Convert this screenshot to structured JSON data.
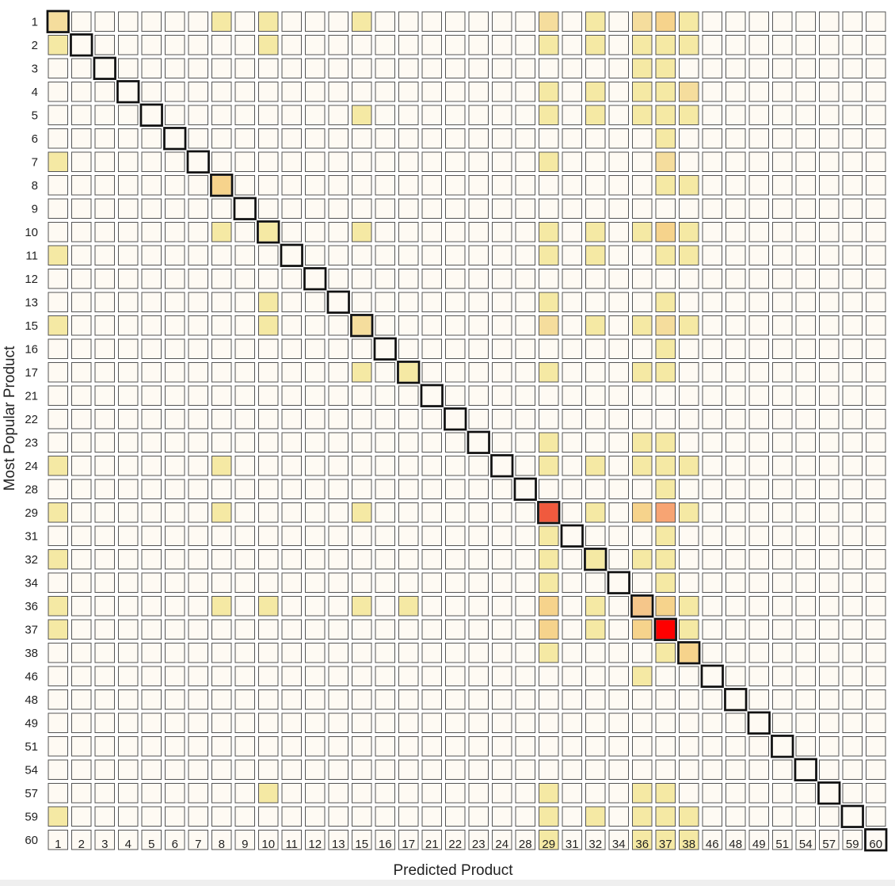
{
  "chart_data": {
    "type": "heatmap",
    "xlabel": "Predicted Product",
    "ylabel": "Most Popular Product",
    "x_categories": [
      "1",
      "2",
      "3",
      "4",
      "5",
      "6",
      "7",
      "8",
      "9",
      "10",
      "11",
      "12",
      "13",
      "15",
      "16",
      "17",
      "21",
      "22",
      "23",
      "24",
      "28",
      "29",
      "31",
      "32",
      "34",
      "36",
      "37",
      "38",
      "46",
      "48",
      "49",
      "51",
      "54",
      "57",
      "59",
      "60"
    ],
    "y_categories": [
      "1",
      "2",
      "3",
      "4",
      "5",
      "6",
      "7",
      "8",
      "9",
      "10",
      "11",
      "12",
      "13",
      "15",
      "16",
      "17",
      "21",
      "22",
      "23",
      "24",
      "28",
      "29",
      "31",
      "32",
      "34",
      "36",
      "37",
      "38",
      "46",
      "48",
      "49",
      "51",
      "54",
      "57",
      "59",
      "60"
    ],
    "default_value": 0,
    "diagonal_highlighted": true,
    "cells": [
      [
        "1",
        "1",
        2
      ],
      [
        "1",
        "8",
        1
      ],
      [
        "1",
        "10",
        1
      ],
      [
        "1",
        "15",
        1
      ],
      [
        "1",
        "29",
        2
      ],
      [
        "1",
        "32",
        1
      ],
      [
        "1",
        "36",
        2
      ],
      [
        "1",
        "37",
        3
      ],
      [
        "1",
        "38",
        1
      ],
      [
        "2",
        "1",
        1
      ],
      [
        "2",
        "10",
        1
      ],
      [
        "2",
        "29",
        1
      ],
      [
        "2",
        "32",
        1
      ],
      [
        "2",
        "36",
        1
      ],
      [
        "2",
        "37",
        1
      ],
      [
        "2",
        "38",
        1
      ],
      [
        "3",
        "36",
        1
      ],
      [
        "3",
        "37",
        1
      ],
      [
        "4",
        "29",
        1
      ],
      [
        "4",
        "32",
        1
      ],
      [
        "4",
        "36",
        1
      ],
      [
        "4",
        "37",
        1
      ],
      [
        "4",
        "38",
        2
      ],
      [
        "5",
        "15",
        1
      ],
      [
        "5",
        "29",
        1
      ],
      [
        "5",
        "32",
        1
      ],
      [
        "5",
        "36",
        1
      ],
      [
        "5",
        "37",
        1
      ],
      [
        "5",
        "38",
        1
      ],
      [
        "6",
        "37",
        1
      ],
      [
        "7",
        "1",
        1
      ],
      [
        "7",
        "29",
        1
      ],
      [
        "7",
        "37",
        2
      ],
      [
        "8",
        "8",
        3
      ],
      [
        "8",
        "37",
        1
      ],
      [
        "8",
        "38",
        1
      ],
      [
        "10",
        "8",
        1
      ],
      [
        "10",
        "10",
        1
      ],
      [
        "10",
        "15",
        1
      ],
      [
        "10",
        "29",
        1
      ],
      [
        "10",
        "32",
        1
      ],
      [
        "10",
        "36",
        1
      ],
      [
        "10",
        "37",
        3
      ],
      [
        "10",
        "38",
        1
      ],
      [
        "11",
        "1",
        1
      ],
      [
        "11",
        "29",
        1
      ],
      [
        "11",
        "32",
        1
      ],
      [
        "11",
        "37",
        1
      ],
      [
        "11",
        "38",
        1
      ],
      [
        "13",
        "10",
        1
      ],
      [
        "13",
        "29",
        1
      ],
      [
        "13",
        "37",
        1
      ],
      [
        "15",
        "1",
        1
      ],
      [
        "15",
        "10",
        1
      ],
      [
        "15",
        "15",
        2
      ],
      [
        "15",
        "29",
        2
      ],
      [
        "15",
        "32",
        1
      ],
      [
        "15",
        "36",
        1
      ],
      [
        "15",
        "37",
        2
      ],
      [
        "15",
        "38",
        1
      ],
      [
        "16",
        "37",
        1
      ],
      [
        "17",
        "15",
        1
      ],
      [
        "17",
        "17",
        1
      ],
      [
        "17",
        "29",
        1
      ],
      [
        "17",
        "36",
        1
      ],
      [
        "17",
        "37",
        1
      ],
      [
        "23",
        "29",
        1
      ],
      [
        "23",
        "36",
        1
      ],
      [
        "23",
        "37",
        1
      ],
      [
        "24",
        "1",
        1
      ],
      [
        "24",
        "8",
        1
      ],
      [
        "24",
        "29",
        1
      ],
      [
        "24",
        "32",
        1
      ],
      [
        "24",
        "36",
        1
      ],
      [
        "24",
        "37",
        1
      ],
      [
        "24",
        "38",
        1
      ],
      [
        "28",
        "37",
        1
      ],
      [
        "29",
        "1",
        1
      ],
      [
        "29",
        "8",
        1
      ],
      [
        "29",
        "15",
        1
      ],
      [
        "29",
        "29",
        6
      ],
      [
        "29",
        "32",
        1
      ],
      [
        "29",
        "36",
        3
      ],
      [
        "29",
        "37",
        5
      ],
      [
        "29",
        "38",
        1
      ],
      [
        "31",
        "29",
        1
      ],
      [
        "31",
        "37",
        1
      ],
      [
        "32",
        "1",
        1
      ],
      [
        "32",
        "29",
        1
      ],
      [
        "32",
        "32",
        1
      ],
      [
        "32",
        "36",
        1
      ],
      [
        "32",
        "37",
        1
      ],
      [
        "34",
        "29",
        1
      ],
      [
        "34",
        "37",
        1
      ],
      [
        "36",
        "1",
        1
      ],
      [
        "36",
        "8",
        1
      ],
      [
        "36",
        "10",
        1
      ],
      [
        "36",
        "15",
        1
      ],
      [
        "36",
        "17",
        1
      ],
      [
        "36",
        "29",
        3
      ],
      [
        "36",
        "32",
        1
      ],
      [
        "36",
        "36",
        4
      ],
      [
        "36",
        "37",
        3
      ],
      [
        "36",
        "38",
        1
      ],
      [
        "37",
        "1",
        1
      ],
      [
        "37",
        "29",
        3
      ],
      [
        "37",
        "32",
        1
      ],
      [
        "37",
        "36",
        3
      ],
      [
        "37",
        "37",
        7
      ],
      [
        "37",
        "38",
        1
      ],
      [
        "38",
        "29",
        1
      ],
      [
        "38",
        "37",
        1
      ],
      [
        "38",
        "38",
        3
      ],
      [
        "46",
        "36",
        1
      ],
      [
        "57",
        "10",
        1
      ],
      [
        "57",
        "29",
        1
      ],
      [
        "57",
        "36",
        1
      ],
      [
        "57",
        "37",
        1
      ],
      [
        "59",
        "1",
        1
      ],
      [
        "59",
        "29",
        1
      ],
      [
        "59",
        "32",
        1
      ],
      [
        "59",
        "36",
        1
      ],
      [
        "59",
        "37",
        1
      ],
      [
        "59",
        "38",
        1
      ],
      [
        "60",
        "29",
        1
      ],
      [
        "60",
        "36",
        1
      ],
      [
        "60",
        "37",
        1
      ],
      [
        "60",
        "38",
        1
      ]
    ],
    "color_scale": [
      "#fefaf3",
      "#f5e9a4",
      "#f5dd9d",
      "#f6d38c",
      "#f5c68a",
      "#f7a473",
      "#f05a3e",
      "#ff0000"
    ]
  }
}
